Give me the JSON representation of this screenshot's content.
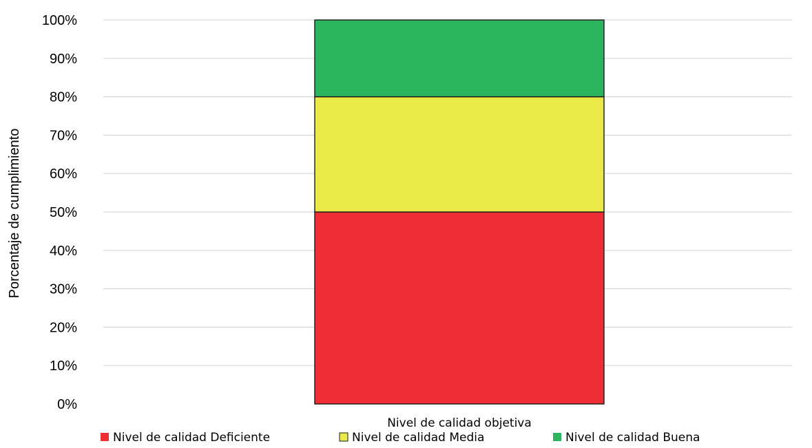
{
  "chart_data": {
    "type": "bar",
    "stacked": true,
    "categories": [
      "Nivel de calidad objetiva"
    ],
    "series": [
      {
        "name": "Nivel de calidad Deficiente",
        "values": [
          50
        ],
        "color": "#EE2E34"
      },
      {
        "name": "Nivel de calidad Media",
        "values": [
          30
        ],
        "color": "#EBE84A"
      },
      {
        "name": "Nivel de calidad Buena",
        "values": [
          20
        ],
        "color": "#2DB45F"
      }
    ],
    "ylabel": "Porcentaje de cumplimiento",
    "xlabel": "",
    "ylim": [
      0,
      100
    ],
    "yticks": [
      "0%",
      "10%",
      "20%",
      "30%",
      "40%",
      "50%",
      "60%",
      "70%",
      "80%",
      "90%",
      "100%"
    ],
    "grid": true,
    "legend_position": "bottom"
  }
}
